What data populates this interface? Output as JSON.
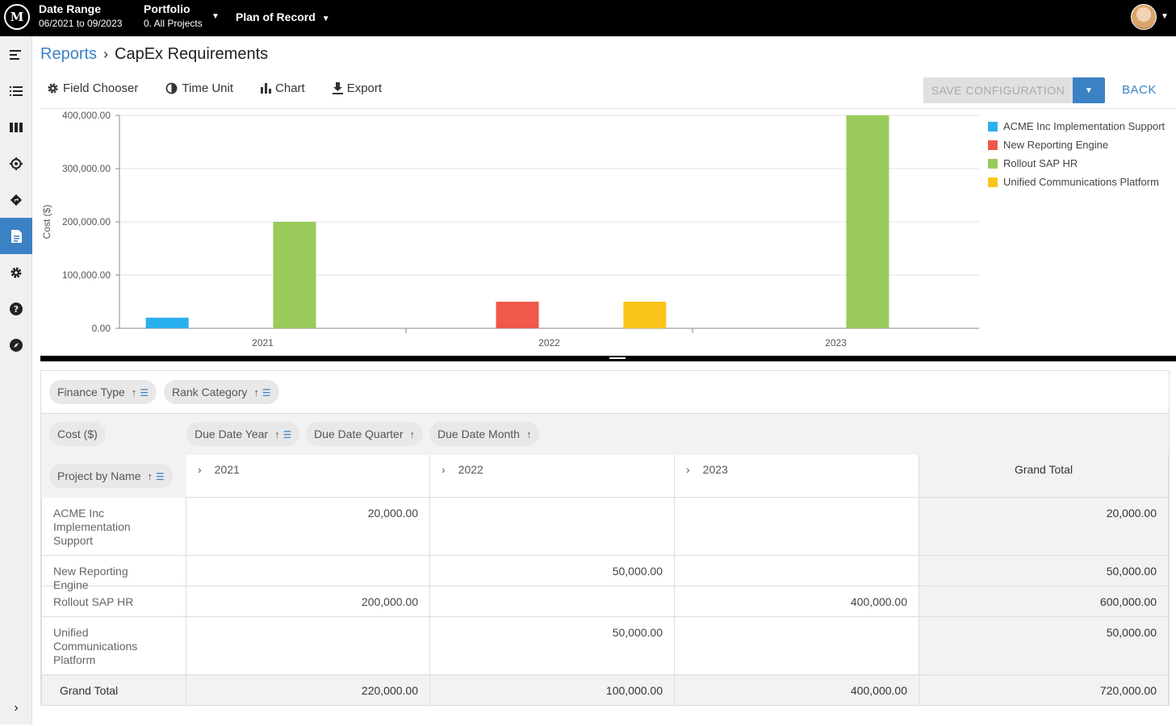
{
  "topbar": {
    "logo": "M",
    "date_range_label": "Date Range",
    "date_range_value": "06/2021 to 09/2023",
    "portfolio_label": "Portfolio",
    "portfolio_value": "0. All Projects",
    "plan_label": "Plan of Record"
  },
  "breadcrumb": {
    "parent": "Reports",
    "current": "CapEx Requirements"
  },
  "toolbar": {
    "field_chooser": "Field Chooser",
    "time_unit": "Time Unit",
    "chart": "Chart",
    "export": "Export",
    "save_config": "SAVE CONFIGURATION",
    "back": "BACK"
  },
  "sidebar": {
    "items": [
      "menu-icon",
      "list-icon",
      "columns-icon",
      "target-icon",
      "directions-icon",
      "report-icon",
      "gear-icon",
      "help-icon",
      "compass-icon"
    ],
    "active": "report-icon",
    "expand": "chevron-right-icon"
  },
  "chart_data": {
    "type": "bar",
    "categories": [
      "2021",
      "2022",
      "2023"
    ],
    "ylabel": "Cost ($)",
    "ylim": [
      0,
      400000
    ],
    "yticks": [
      "0.00",
      "100,000.00",
      "200,000.00",
      "300,000.00",
      "400,000.00"
    ],
    "series": [
      {
        "name": "ACME Inc Implementation Support",
        "color": "#29b0ec",
        "values": [
          20000,
          0,
          0
        ]
      },
      {
        "name": "New Reporting Engine",
        "color": "#f0584a",
        "values": [
          0,
          50000,
          0
        ]
      },
      {
        "name": "Rollout SAP HR",
        "color": "#99ca5a",
        "values": [
          200000,
          0,
          400000
        ]
      },
      {
        "name": "Unified Communications Platform",
        "color": "#fcc51c",
        "values": [
          0,
          50000,
          0
        ]
      }
    ],
    "legend": "right"
  },
  "pivot": {
    "filter_chips": [
      "Finance Type",
      "Rank Category"
    ],
    "data_chip": "Cost ($)",
    "column_chips": [
      "Due Date Year",
      "Due Date Quarter",
      "Due Date Month"
    ],
    "row_chip": "Project by Name",
    "columns": [
      "2021",
      "2022",
      "2023"
    ],
    "grand_total_label": "Grand Total",
    "rows": [
      {
        "name": "ACME Inc Implementation Support",
        "values": [
          "20,000.00",
          "",
          ""
        ],
        "total": "20,000.00"
      },
      {
        "name": "New Reporting Engine",
        "values": [
          "",
          "50,000.00",
          ""
        ],
        "total": "50,000.00"
      },
      {
        "name": "Rollout SAP HR",
        "values": [
          "200,000.00",
          "",
          "400,000.00"
        ],
        "total": "600,000.00"
      },
      {
        "name": "Unified Communications Platform",
        "values": [
          "",
          "50,000.00",
          ""
        ],
        "total": "50,000.00"
      }
    ],
    "totals": {
      "values": [
        "220,000.00",
        "100,000.00",
        "400,000.00"
      ],
      "total": "720,000.00"
    }
  }
}
